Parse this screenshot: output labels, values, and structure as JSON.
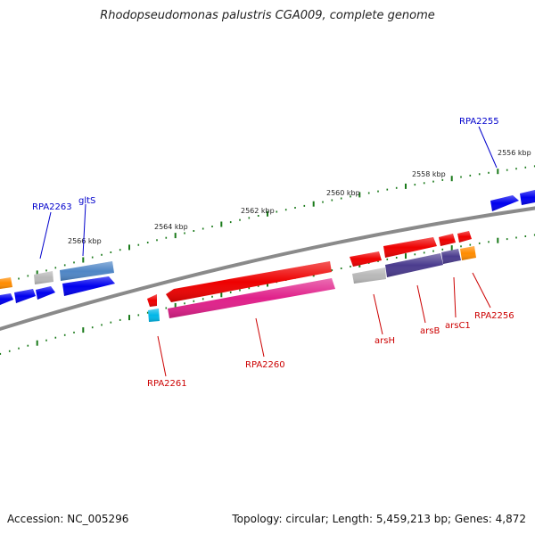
{
  "title": "Rhodopseudomonas palustris CGA009, complete genome",
  "footer": {
    "accession": "Accession: NC_005296",
    "topology": "Topology: circular; Length: 5,459,213 bp; Genes: 4,872"
  },
  "ruler_labels": [
    "2556 kbp",
    "2558 kbp",
    "2560 kbp",
    "2562 kbp",
    "2564 kbp",
    "2566 kbp"
  ],
  "gene_labels": {
    "top": [
      "RPA2255",
      "RPA2263",
      "gltS"
    ],
    "bottom": [
      "RPA2261",
      "RPA2260",
      "arsH",
      "arsB",
      "arsC1",
      "RPA2256"
    ]
  },
  "colors": {
    "backbone": "#8a8a8a",
    "tick": "#1a7a1a",
    "forward_label": "#0000cc",
    "reverse_label": "#cc0000",
    "blue": "#0000ee",
    "steel": "#4f86c6",
    "gray": "#b8b8b8",
    "orange": "#ff8c00",
    "red": "#ee0000",
    "magenta": "#e0208a",
    "indigo": "#4b3c8e",
    "cyan": "#00b7e8"
  }
}
